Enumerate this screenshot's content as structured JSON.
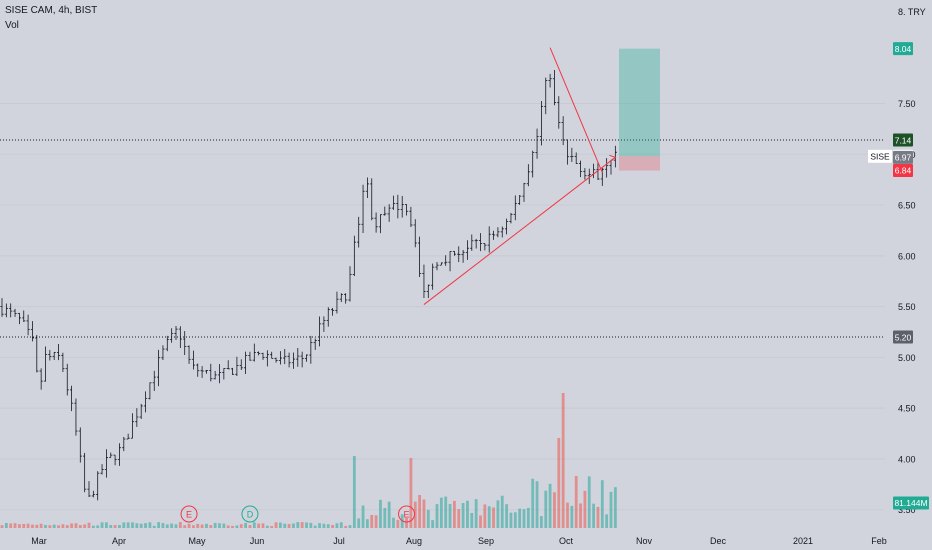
{
  "header": {
    "symbol_line": "SISE CAM, 4h, BIST",
    "indicator": "Vol"
  },
  "colors": {
    "up": "#26a69a",
    "down": "#ef5350",
    "line": "#131722",
    "trend": "#f23645",
    "bg": "#d1d4dc"
  },
  "chart_data": {
    "type": "candlestick",
    "currency": "TRY",
    "currency_label": "8. TRY",
    "y_ticks": [
      "7.50",
      "7.00",
      "6.50",
      "6.00",
      "5.50",
      "5.00",
      "4.50",
      "4.00",
      "3.50"
    ],
    "y_tick_values": [
      7.5,
      7.0,
      6.5,
      6.0,
      5.5,
      5.0,
      4.5,
      4.0,
      3.5
    ],
    "ylim": [
      3.3,
      8.47
    ],
    "x_ticks": [
      "Mar",
      "Apr",
      "May",
      "Jun",
      "Jul",
      "Aug",
      "Sep",
      "Oct",
      "Nov",
      "Dec",
      "2021",
      "Feb"
    ],
    "price_path": [
      [
        0,
        5.5
      ],
      [
        5,
        5.35
      ],
      [
        8,
        5.1
      ],
      [
        9,
        4.55
      ],
      [
        10,
        5.0
      ],
      [
        14,
        5.0
      ],
      [
        17,
        4.4
      ],
      [
        20,
        3.55
      ],
      [
        24,
        3.95
      ],
      [
        28,
        4.1
      ],
      [
        33,
        4.6
      ],
      [
        38,
        5.1
      ],
      [
        41,
        5.28
      ],
      [
        44,
        4.9
      ],
      [
        50,
        4.8
      ],
      [
        55,
        4.92
      ],
      [
        60,
        5.05
      ],
      [
        65,
        4.95
      ],
      [
        70,
        5.0
      ],
      [
        75,
        5.4
      ],
      [
        80,
        5.65
      ],
      [
        84,
        6.8
      ],
      [
        86,
        6.3
      ],
      [
        90,
        6.45
      ],
      [
        93,
        6.55
      ],
      [
        96,
        6.1
      ],
      [
        97,
        5.55
      ],
      [
        100,
        5.95
      ],
      [
        106,
        6.05
      ],
      [
        112,
        6.15
      ],
      [
        117,
        6.35
      ],
      [
        120,
        6.65
      ],
      [
        122,
        6.95
      ],
      [
        124,
        7.25
      ],
      [
        126,
        7.95
      ],
      [
        127,
        7.6
      ],
      [
        130,
        7.0
      ],
      [
        133,
        6.9
      ],
      [
        135,
        6.82
      ],
      [
        137,
        6.78
      ],
      [
        140,
        6.98
      ]
    ],
    "trendlines": [
      {
        "from": [
          97,
          5.52
        ],
        "to": [
          141,
          6.97
        ]
      },
      {
        "from": [
          126,
          8.05
        ],
        "to": [
          138,
          6.82
        ]
      }
    ],
    "position_box": {
      "entry": 6.98,
      "target": 8.04,
      "stop": 6.84
    },
    "horizontal_lines": [
      7.14,
      5.2
    ],
    "volume_label": "81.144M",
    "price_badges": [
      {
        "label": "8.04",
        "value": 8.04,
        "color": "#22ab94"
      },
      {
        "label": "7.14",
        "value": 7.14,
        "color": "#1e5128"
      },
      {
        "label": "6.98",
        "value": 6.98,
        "color": "#ffffff",
        "text_color": "#131722",
        "prefix": "SISE"
      },
      {
        "label": "6.97",
        "value": 6.97,
        "color": "#787b86"
      },
      {
        "label": "6.84",
        "value": 6.84,
        "color": "#f23645"
      },
      {
        "label": "5.20",
        "value": 5.2,
        "color": "#5d606b"
      }
    ],
    "events": [
      {
        "label": "E",
        "color": "#f23645",
        "at": 43
      },
      {
        "label": "D",
        "color": "#22ab94",
        "at": 57
      },
      {
        "label": "E",
        "color": "#f23645",
        "at": 93
      }
    ]
  }
}
